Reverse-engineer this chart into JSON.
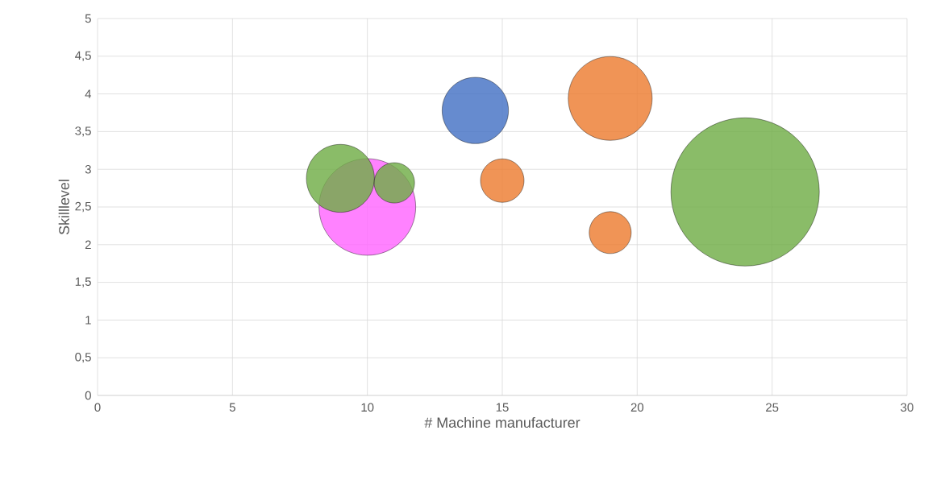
{
  "chart_data": {
    "type": "bubble",
    "xlabel": "# Machine manufacturer",
    "ylabel": "Skilllevel",
    "xlim": [
      0,
      30
    ],
    "ylim": [
      0,
      5
    ],
    "xticks": [
      0,
      5,
      10,
      15,
      20,
      25,
      30
    ],
    "yticks": [
      0,
      {
        "value": 0.5,
        "label": "0,5"
      },
      1,
      {
        "value": 1.5,
        "label": "1,5"
      },
      2,
      {
        "value": 2.5,
        "label": "2,5"
      },
      3,
      {
        "value": 3.5,
        "label": "3,5"
      },
      4,
      {
        "value": 4.5,
        "label": "4,5"
      },
      5
    ],
    "grid": true,
    "series": [
      {
        "color": "#4472c4",
        "x": [
          14
        ],
        "values": [
          3.78
        ],
        "sizes": [
          0.2
        ]
      },
      {
        "color": "#ed7d31",
        "x": [
          19,
          15,
          19
        ],
        "values": [
          3.94,
          2.85,
          2.16
        ],
        "sizes": [
          0.32,
          0.086,
          0.08
        ]
      },
      {
        "color": "#ff66ff",
        "x": [
          10
        ],
        "values": [
          2.5
        ],
        "sizes": [
          0.425
        ]
      },
      {
        "color": "#70ad47",
        "x": [
          24,
          9,
          11
        ],
        "values": [
          2.7,
          2.88,
          2.82
        ],
        "sizes": [
          1,
          0.21,
          0.074
        ]
      }
    ]
  }
}
